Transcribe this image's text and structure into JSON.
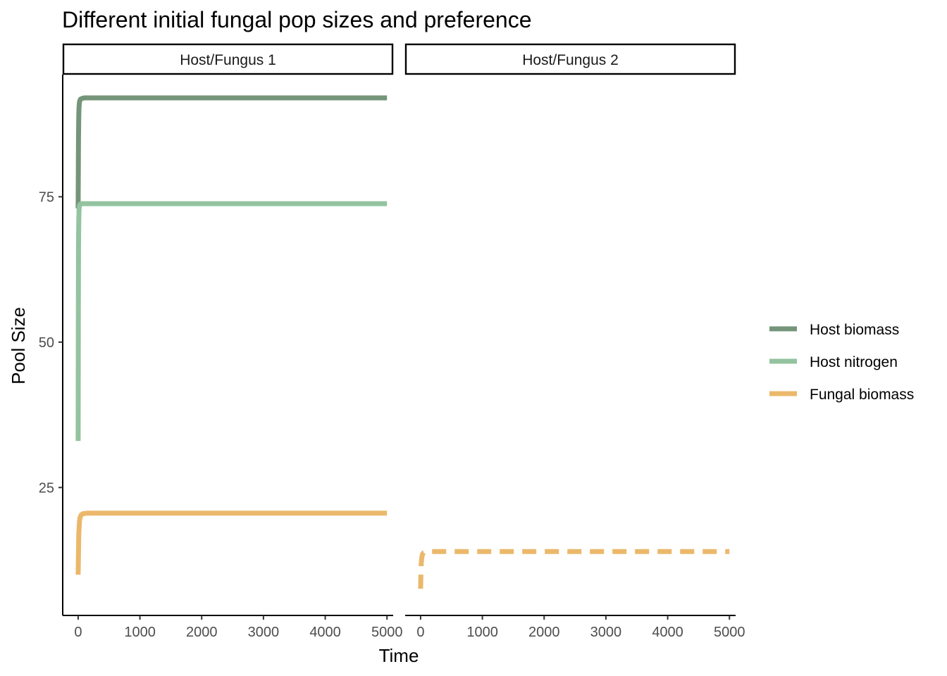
{
  "chart_data": {
    "type": "line",
    "title": "Different initial fungal pop sizes and preference",
    "xlabel": "Time",
    "ylabel": "Pool Size",
    "xlim": [
      -250,
      5100
    ],
    "ylim": [
      3,
      96
    ],
    "x_ticks": [
      0,
      1000,
      2000,
      3000,
      4000,
      5000
    ],
    "y_ticks": [
      25,
      50,
      75
    ],
    "grid": false,
    "legend_position": "right",
    "panels": [
      {
        "strip": "Host/Fungus 1",
        "series": [
          {
            "name": "Host biomass",
            "color": "#749579",
            "dash": "solid",
            "x": [
              0,
              5,
              10,
              15,
              20,
              30,
              40,
              60,
              100,
              200,
              500,
              1000,
              2000,
              3000,
              4000,
              5000
            ],
            "y": [
              73,
              85,
              89,
              90.5,
              91.2,
              91.6,
              91.8,
              91.9,
              92,
              92,
              92,
              92,
              92,
              92,
              92,
              92
            ]
          },
          {
            "name": "Host nitrogen",
            "color": "#93c39f",
            "dash": "solid",
            "x": [
              0,
              3,
              6,
              10,
              15,
              20,
              30,
              50,
              100,
              500,
              1000,
              2000,
              3000,
              4000,
              5000
            ],
            "y": [
              33,
              55,
              66,
              71,
              72.8,
              73.4,
              73.7,
              73.8,
              73.8,
              73.8,
              73.8,
              73.8,
              73.8,
              73.8,
              73.8
            ]
          },
          {
            "name": "Fungal biomass",
            "color": "#ebb86b",
            "dash": "solid",
            "x": [
              0,
              5,
              10,
              20,
              30,
              50,
              80,
              150,
              500,
              1000,
              2000,
              3000,
              4000,
              5000
            ],
            "y": [
              10,
              14,
              17,
              19,
              19.8,
              20.3,
              20.5,
              20.6,
              20.6,
              20.6,
              20.6,
              20.6,
              20.6,
              20.6
            ]
          }
        ]
      },
      {
        "strip": "Host/Fungus 2",
        "series": [
          {
            "name": "Fungal biomass",
            "color": "#ebb86b",
            "dash": "dashed",
            "x": [
              0,
              5,
              10,
              20,
              30,
              50,
              80,
              150,
              500,
              1000,
              2000,
              3000,
              4000,
              5000
            ],
            "y": [
              7.6,
              10,
              12,
              13,
              13.5,
              13.8,
              13.9,
              14,
              14,
              14,
              14,
              14,
              14,
              14
            ]
          }
        ]
      }
    ],
    "legend": [
      {
        "name": "Host biomass",
        "color": "#749579"
      },
      {
        "name": "Host nitrogen",
        "color": "#93c39f"
      },
      {
        "name": "Fungal biomass",
        "color": "#ebb86b"
      }
    ]
  }
}
